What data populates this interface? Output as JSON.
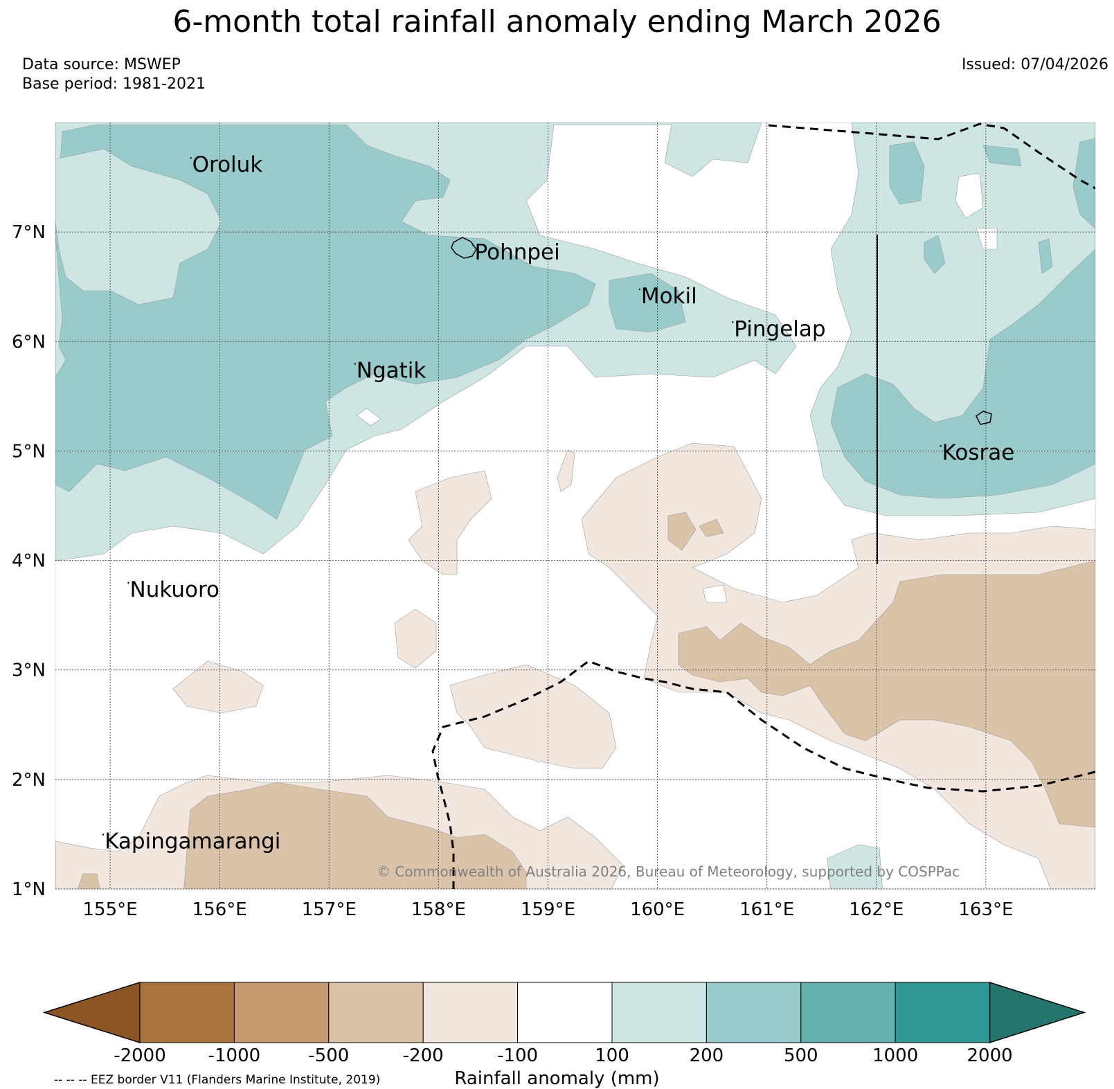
{
  "title": "6-month total rainfall anomaly ending March 2026",
  "meta": {
    "source": "Data source: MSWEP",
    "base": "Base period: 1981-2021",
    "issued": "Issued: 07/04/2026"
  },
  "map": {
    "lon_range": [
      154.5,
      164.0
    ],
    "lat_range": [
      1.0,
      8.0
    ],
    "lon_ticks": [
      155,
      156,
      157,
      158,
      159,
      160,
      161,
      162,
      163
    ],
    "lon_labels": [
      "155°E",
      "156°E",
      "157°E",
      "158°E",
      "159°E",
      "160°E",
      "161°E",
      "162°E",
      "163°E"
    ],
    "lat_ticks": [
      1,
      2,
      3,
      4,
      5,
      6,
      7
    ],
    "lat_labels": [
      "1°N",
      "2°N",
      "3°N",
      "4°N",
      "5°N",
      "6°N",
      "7°N"
    ],
    "places": [
      {
        "name": "Oroluk",
        "lon": 155.75,
        "lat": 7.55
      },
      {
        "name": "Pohnpei",
        "lon": 158.33,
        "lat": 6.75
      },
      {
        "name": "Mokil",
        "lon": 159.85,
        "lat": 6.35
      },
      {
        "name": "Pingelap",
        "lon": 160.7,
        "lat": 6.05
      },
      {
        "name": "Ngatik",
        "lon": 157.25,
        "lat": 5.67
      },
      {
        "name": "Kosrae",
        "lon": 162.6,
        "lat": 4.92
      },
      {
        "name": "Nukuoro",
        "lon": 155.18,
        "lat": 3.67
      },
      {
        "name": "Kapingamarangi",
        "lon": 154.95,
        "lat": 1.37
      }
    ],
    "copyright": "© Commonwealth of Australia 2026, Bureau of Meteorology, supported by COSPPac"
  },
  "colorbar": {
    "low_extend_color": "#8c5526",
    "high_extend_color": "#25756f",
    "colors": [
      "#a8733d",
      "#c49a6e",
      "#dbc3a9",
      "#f1e7de",
      "#ffffff",
      "#cde6e4",
      "#9acbcb",
      "#64b0ad",
      "#2e9791"
    ],
    "labels": [
      "-2000",
      "-1000",
      "-500",
      "-200",
      "-100",
      "100",
      "200",
      "500",
      "1000",
      "2000"
    ],
    "title": "Rainfall anomaly (mm)"
  },
  "eez_note": "-- -- -- EEZ border V11 (Flanders Marine Institute, 2019)"
}
